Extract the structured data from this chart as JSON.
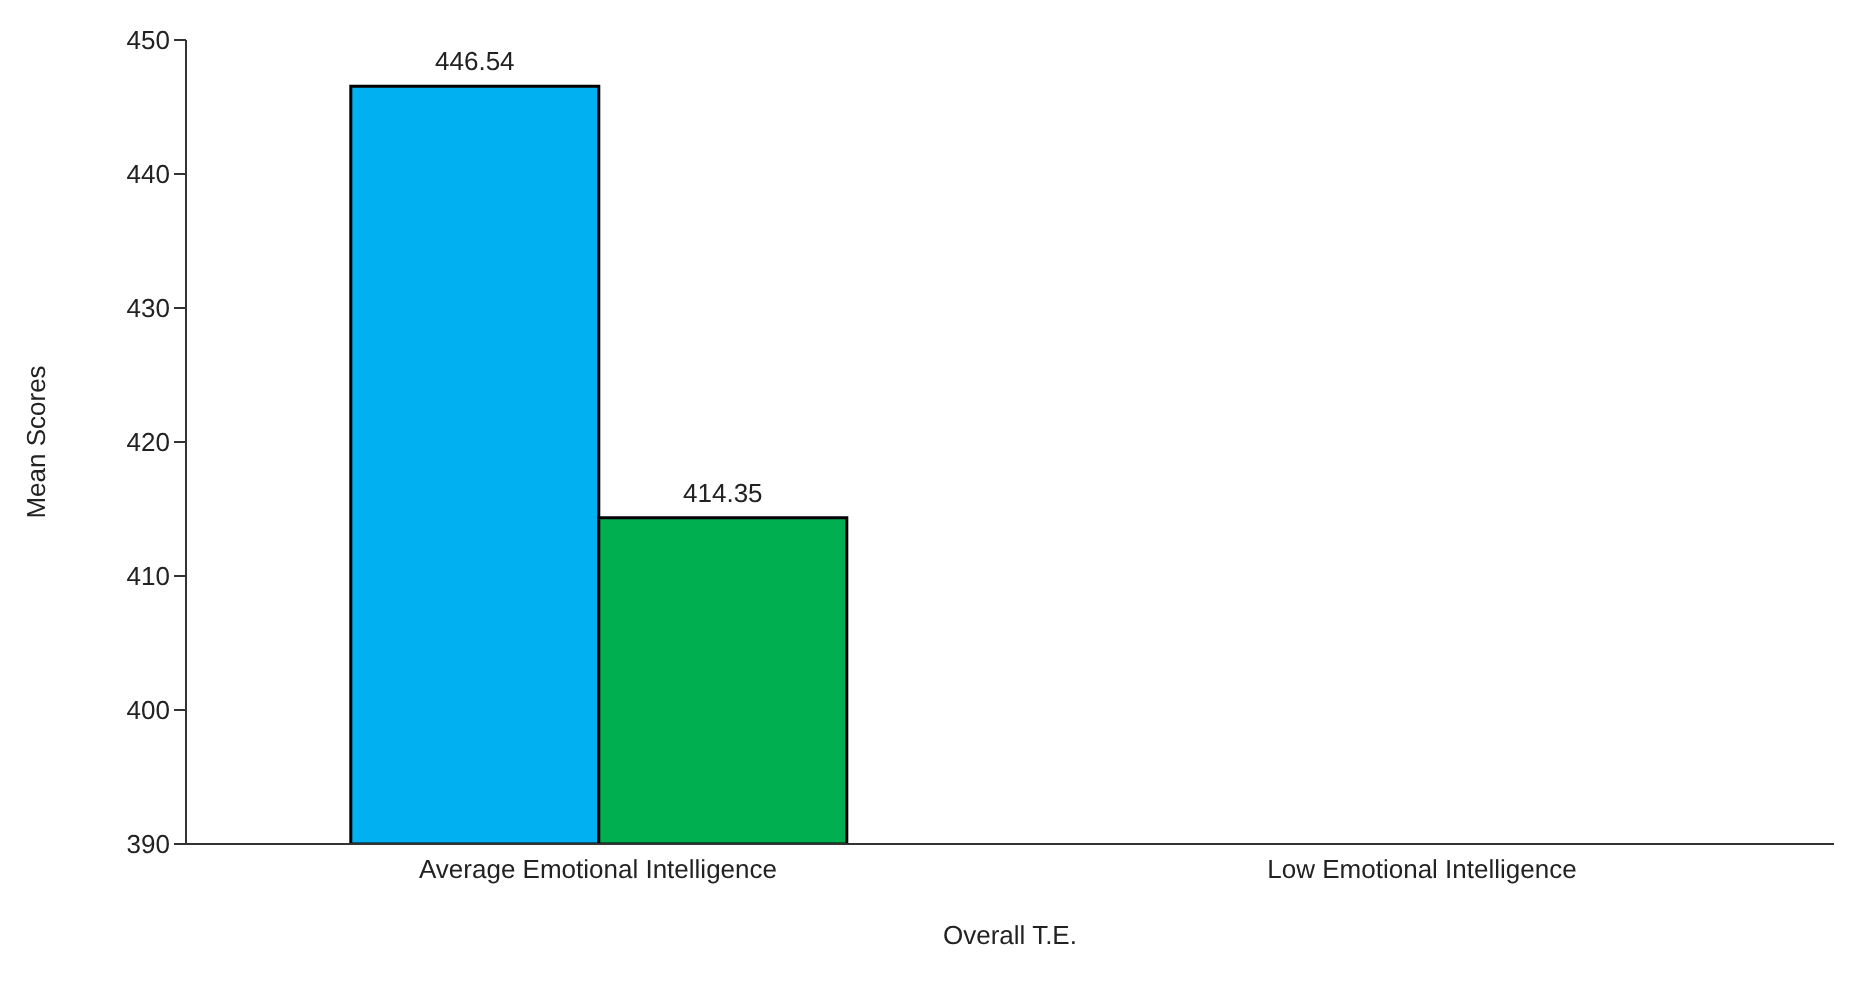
{
  "chart_data": {
    "type": "bar",
    "xlabel": "Overall T.E.",
    "ylabel": "Mean Scores",
    "categories": [
      "Average Emotional Intelligence",
      "Low Emotional Intelligence"
    ],
    "series": [
      {
        "color": "#00b0f0",
        "values": [
          446.54,
          null
        ]
      },
      {
        "color": "#00b050",
        "values": [
          414.35,
          null
        ]
      }
    ],
    "ylim": [
      390,
      450
    ],
    "yticks": [
      390,
      400,
      410,
      420,
      430,
      440,
      450
    ],
    "data_labels": true,
    "grid": false,
    "legend": false
  }
}
